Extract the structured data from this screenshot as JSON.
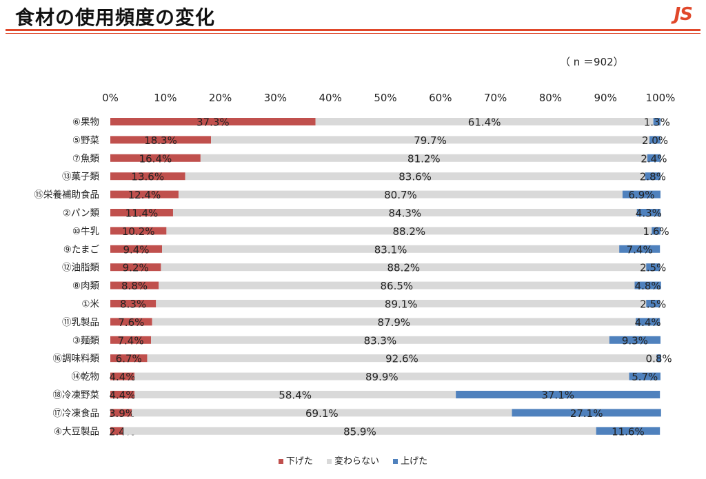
{
  "header": {
    "title": "食材の使用頻度の変化",
    "logo": "JS",
    "sample": "（ n ＝902）"
  },
  "colors": {
    "down": "#c0504d",
    "same": "#d9d9d9",
    "up": "#4f81bd",
    "accent": "#e0472a"
  },
  "chart_data": {
    "type": "bar",
    "orientation": "horizontal",
    "stacked": "percent",
    "x_ticks": [
      "0%",
      "10%",
      "20%",
      "30%",
      "40%",
      "50%",
      "60%",
      "70%",
      "80%",
      "90%",
      "100%"
    ],
    "xlim": [
      0,
      100
    ],
    "categories": [
      "⑥果物",
      "⑤野菜",
      "⑦魚類",
      "⑬菓子類",
      "⑮栄養補助食品",
      "②パン類",
      "⑩牛乳",
      "⑨たまご",
      "⑫油脂類",
      "⑧肉類",
      "①米",
      "⑪乳製品",
      "③麺類",
      "⑯調味料類",
      "⑭乾物",
      "⑱冷凍野菜",
      "⑰冷凍食品",
      "④大豆製品"
    ],
    "series": [
      {
        "name": "下げた",
        "color": "#c0504d",
        "values": [
          37.3,
          18.3,
          16.4,
          13.6,
          12.4,
          11.4,
          10.2,
          9.4,
          9.2,
          8.8,
          8.3,
          7.6,
          7.4,
          6.7,
          4.4,
          4.4,
          3.9,
          2.4
        ],
        "labels": [
          "37.3%",
          "18.3%",
          "16.4%",
          "13.6%",
          "12.4%",
          "11.4%",
          "10.2%",
          "9.4%",
          "9.2%",
          "8.8%",
          "8.3%",
          "7.6%",
          "7.4%",
          "6.7%",
          "4.4%",
          "4.4%",
          "3.9%",
          "2.4%"
        ]
      },
      {
        "name": "変わらない",
        "color": "#d9d9d9",
        "values": [
          61.4,
          79.7,
          81.2,
          83.6,
          80.7,
          84.3,
          88.2,
          83.1,
          88.2,
          86.5,
          89.1,
          87.9,
          83.3,
          92.6,
          89.9,
          58.4,
          69.1,
          85.9
        ],
        "labels": [
          "61.4%",
          "79.7%",
          "81.2%",
          "83.6%",
          "80.7%",
          "84.3%",
          "88.2%",
          "83.1%",
          "88.2%",
          "86.5%",
          "89.1%",
          "87.9%",
          "83.3%",
          "92.6%",
          "89.9%",
          "58.4%",
          "69.1%",
          "85.9%"
        ]
      },
      {
        "name": "上げた",
        "color": "#4f81bd",
        "values": [
          1.3,
          2.0,
          2.4,
          2.8,
          6.9,
          4.3,
          1.6,
          7.4,
          2.5,
          4.8,
          2.5,
          4.4,
          9.3,
          0.8,
          5.7,
          37.1,
          27.1,
          11.6
        ],
        "labels": [
          "1.3%",
          "2.0%",
          "2.4%",
          "2.8%",
          "6.9%",
          "4.3%",
          "1.6%",
          "7.4%",
          "2.5%",
          "4.8%",
          "2.5%",
          "4.4%",
          "9.3%",
          "0.8%",
          "5.7%",
          "37.1%",
          "27.1%",
          "11.6%"
        ]
      }
    ],
    "legend": [
      "下げた",
      "変わらない",
      "上げた"
    ],
    "legend_position": "bottom"
  }
}
